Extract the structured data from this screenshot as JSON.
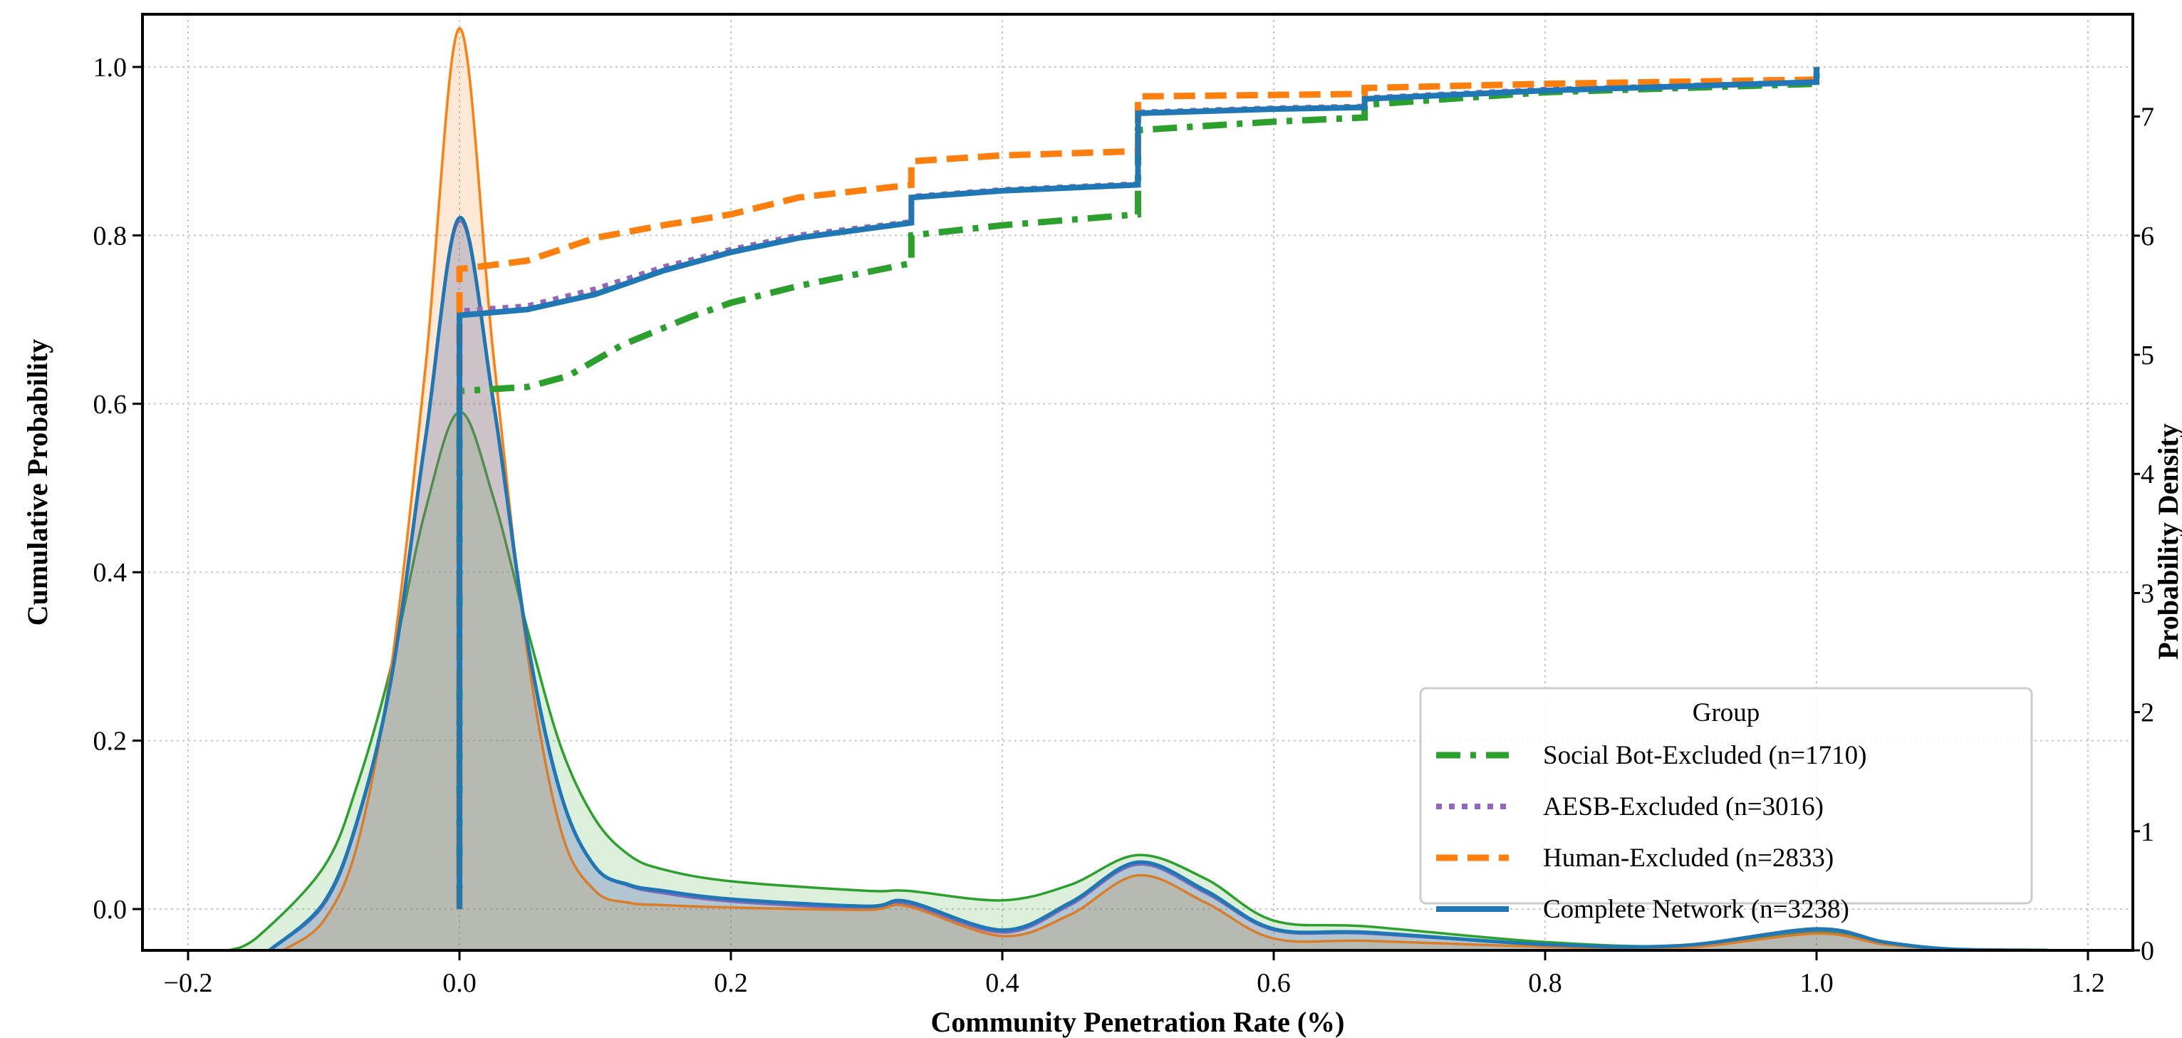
{
  "chart_data": {
    "type": "line",
    "title": "",
    "xlabel": "Community Penetration Rate (%)",
    "ylabel": "Cumulative Probability",
    "y2label": "Probability Density",
    "xlim": [
      -0.234,
      1.233
    ],
    "ylim": [
      -0.049,
      1.063
    ],
    "y2lim": [
      0,
      7.86
    ],
    "grid": true,
    "x_ticks": [
      {
        "value": -0.2,
        "label": "−0.2"
      },
      {
        "value": 0.0,
        "label": "0.0"
      },
      {
        "value": 0.2,
        "label": "0.2"
      },
      {
        "value": 0.4,
        "label": "0.4"
      },
      {
        "value": 0.6,
        "label": "0.6"
      },
      {
        "value": 0.8,
        "label": "0.8"
      },
      {
        "value": 1.0,
        "label": "1.0"
      },
      {
        "value": 1.2,
        "label": "1.2"
      }
    ],
    "y_ticks": [
      {
        "value": 0.0,
        "label": "0.0"
      },
      {
        "value": 0.2,
        "label": "0.2"
      },
      {
        "value": 0.4,
        "label": "0.4"
      },
      {
        "value": 0.6,
        "label": "0.6"
      },
      {
        "value": 0.8,
        "label": "0.8"
      },
      {
        "value": 1.0,
        "label": "1.0"
      }
    ],
    "y2_ticks": [
      {
        "value": 0,
        "label": "0"
      },
      {
        "value": 1,
        "label": "1"
      },
      {
        "value": 2,
        "label": "2"
      },
      {
        "value": 3,
        "label": "3"
      },
      {
        "value": 4,
        "label": "4"
      },
      {
        "value": 5,
        "label": "5"
      },
      {
        "value": 6,
        "label": "6"
      },
      {
        "value": 7,
        "label": "7"
      }
    ],
    "legend": {
      "title": "Group",
      "placement": "lower-right"
    },
    "series": [
      {
        "name": "Social Bot-Excluded (n=1710)",
        "key": "social-bot-excluded",
        "color": "#2ca02c",
        "style": "dashdot",
        "cdf": [
          [
            0,
            0
          ],
          [
            0,
            0.615
          ],
          [
            0.05,
            0.62
          ],
          [
            0.08,
            0.633
          ],
          [
            0.12,
            0.67
          ],
          [
            0.17,
            0.703
          ],
          [
            0.2,
            0.72
          ],
          [
            0.25,
            0.74
          ],
          [
            0.333,
            0.767
          ],
          [
            0.333,
            0.8
          ],
          [
            0.4,
            0.812
          ],
          [
            0.5,
            0.825
          ],
          [
            0.5,
            0.925
          ],
          [
            0.6,
            0.935
          ],
          [
            0.667,
            0.94
          ],
          [
            0.667,
            0.955
          ],
          [
            0.8,
            0.97
          ],
          [
            1.0,
            0.98
          ],
          [
            1.0,
            1.0
          ]
        ],
        "kde": [
          [
            -0.17,
            0
          ],
          [
            -0.15,
            0.1
          ],
          [
            -0.1,
            0.7
          ],
          [
            -0.075,
            1.4
          ],
          [
            -0.05,
            2.4
          ],
          [
            -0.025,
            3.7
          ],
          [
            0,
            4.52
          ],
          [
            0.025,
            3.8
          ],
          [
            0.05,
            2.7
          ],
          [
            0.075,
            1.7
          ],
          [
            0.1,
            1.1
          ],
          [
            0.125,
            0.8
          ],
          [
            0.15,
            0.68
          ],
          [
            0.2,
            0.58
          ],
          [
            0.3,
            0.5
          ],
          [
            0.33,
            0.5
          ],
          [
            0.4,
            0.42
          ],
          [
            0.45,
            0.55
          ],
          [
            0.5,
            0.8
          ],
          [
            0.55,
            0.6
          ],
          [
            0.6,
            0.25
          ],
          [
            0.67,
            0.2
          ],
          [
            0.8,
            0.07
          ],
          [
            0.9,
            0.04
          ],
          [
            1.0,
            0.16
          ],
          [
            1.05,
            0.07
          ],
          [
            1.1,
            0.01
          ],
          [
            1.17,
            0
          ]
        ]
      },
      {
        "name": "AESB-Excluded (n=3016)",
        "key": "aesb-excluded",
        "color": "#9467bd",
        "style": "dotted",
        "cdf": [
          [
            0,
            0
          ],
          [
            0,
            0.71
          ],
          [
            0.05,
            0.716
          ],
          [
            0.1,
            0.736
          ],
          [
            0.15,
            0.762
          ],
          [
            0.2,
            0.783
          ],
          [
            0.25,
            0.8
          ],
          [
            0.333,
            0.816
          ],
          [
            0.333,
            0.846
          ],
          [
            0.4,
            0.854
          ],
          [
            0.5,
            0.861
          ],
          [
            0.5,
            0.946
          ],
          [
            0.6,
            0.951
          ],
          [
            0.667,
            0.953
          ],
          [
            0.667,
            0.963
          ],
          [
            0.8,
            0.973
          ],
          [
            1.0,
            0.982
          ],
          [
            1.0,
            1.0
          ]
        ],
        "kde": [
          [
            -0.14,
            0
          ],
          [
            -0.1,
            0.38
          ],
          [
            -0.075,
            1.08
          ],
          [
            -0.05,
            2.28
          ],
          [
            -0.025,
            4.28
          ],
          [
            0,
            6.12
          ],
          [
            0.025,
            4.58
          ],
          [
            0.05,
            2.6
          ],
          [
            0.075,
            1.3
          ],
          [
            0.1,
            0.7
          ],
          [
            0.125,
            0.54
          ],
          [
            0.15,
            0.48
          ],
          [
            0.2,
            0.41
          ],
          [
            0.3,
            0.35
          ],
          [
            0.33,
            0.39
          ],
          [
            0.4,
            0.15
          ],
          [
            0.45,
            0.38
          ],
          [
            0.5,
            0.72
          ],
          [
            0.55,
            0.48
          ],
          [
            0.6,
            0.17
          ],
          [
            0.67,
            0.14
          ],
          [
            0.8,
            0.05
          ],
          [
            0.9,
            0.04
          ],
          [
            1.0,
            0.17
          ],
          [
            1.05,
            0.07
          ],
          [
            1.1,
            0.01
          ],
          [
            1.17,
            0
          ]
        ]
      },
      {
        "name": "Human-Excluded (n=2833)",
        "key": "human-excluded",
        "color": "#ff7f0e",
        "style": "dashed",
        "cdf": [
          [
            0,
            0
          ],
          [
            0,
            0.76
          ],
          [
            0.05,
            0.77
          ],
          [
            0.1,
            0.797
          ],
          [
            0.15,
            0.812
          ],
          [
            0.2,
            0.825
          ],
          [
            0.25,
            0.845
          ],
          [
            0.333,
            0.86
          ],
          [
            0.333,
            0.888
          ],
          [
            0.4,
            0.895
          ],
          [
            0.5,
            0.9
          ],
          [
            0.5,
            0.965
          ],
          [
            0.667,
            0.968
          ],
          [
            0.667,
            0.975
          ],
          [
            0.8,
            0.98
          ],
          [
            1.0,
            0.985
          ],
          [
            1.0,
            1.0
          ]
        ],
        "kde": [
          [
            -0.13,
            0
          ],
          [
            -0.1,
            0.25
          ],
          [
            -0.075,
            0.9
          ],
          [
            -0.05,
            2.4
          ],
          [
            -0.025,
            4.9
          ],
          [
            0,
            7.74
          ],
          [
            0.025,
            5.0
          ],
          [
            0.05,
            2.5
          ],
          [
            0.075,
            1.0
          ],
          [
            0.1,
            0.5
          ],
          [
            0.125,
            0.4
          ],
          [
            0.15,
            0.38
          ],
          [
            0.2,
            0.36
          ],
          [
            0.3,
            0.34
          ],
          [
            0.33,
            0.37
          ],
          [
            0.4,
            0.12
          ],
          [
            0.45,
            0.3
          ],
          [
            0.5,
            0.63
          ],
          [
            0.55,
            0.4
          ],
          [
            0.6,
            0.1
          ],
          [
            0.67,
            0.08
          ],
          [
            0.8,
            0.03
          ],
          [
            0.9,
            0.02
          ],
          [
            1.0,
            0.14
          ],
          [
            1.05,
            0.05
          ],
          [
            1.1,
            0.01
          ],
          [
            1.17,
            0
          ]
        ]
      },
      {
        "name": "Complete Network (n=3238)",
        "key": "complete-network",
        "color": "#1f77b4",
        "style": "solid",
        "cdf": [
          [
            0,
            0
          ],
          [
            0,
            0.705
          ],
          [
            0.05,
            0.712
          ],
          [
            0.1,
            0.73
          ],
          [
            0.15,
            0.758
          ],
          [
            0.2,
            0.78
          ],
          [
            0.25,
            0.797
          ],
          [
            0.333,
            0.815
          ],
          [
            0.333,
            0.845
          ],
          [
            0.4,
            0.853
          ],
          [
            0.5,
            0.86
          ],
          [
            0.5,
            0.945
          ],
          [
            0.6,
            0.95
          ],
          [
            0.667,
            0.952
          ],
          [
            0.667,
            0.962
          ],
          [
            0.8,
            0.972
          ],
          [
            1.0,
            0.982
          ],
          [
            1.0,
            1.0
          ]
        ],
        "kde": [
          [
            -0.14,
            0
          ],
          [
            -0.1,
            0.4
          ],
          [
            -0.075,
            1.1
          ],
          [
            -0.05,
            2.3
          ],
          [
            -0.025,
            4.3
          ],
          [
            0,
            6.15
          ],
          [
            0.025,
            4.6
          ],
          [
            0.05,
            2.6
          ],
          [
            0.075,
            1.3
          ],
          [
            0.1,
            0.7
          ],
          [
            0.125,
            0.55
          ],
          [
            0.15,
            0.5
          ],
          [
            0.2,
            0.43
          ],
          [
            0.3,
            0.37
          ],
          [
            0.33,
            0.41
          ],
          [
            0.4,
            0.17
          ],
          [
            0.45,
            0.4
          ],
          [
            0.5,
            0.74
          ],
          [
            0.55,
            0.5
          ],
          [
            0.6,
            0.18
          ],
          [
            0.67,
            0.15
          ],
          [
            0.8,
            0.05
          ],
          [
            0.9,
            0.04
          ],
          [
            1.0,
            0.18
          ],
          [
            1.05,
            0.07
          ],
          [
            1.1,
            0.01
          ],
          [
            1.17,
            0
          ]
        ]
      }
    ]
  }
}
